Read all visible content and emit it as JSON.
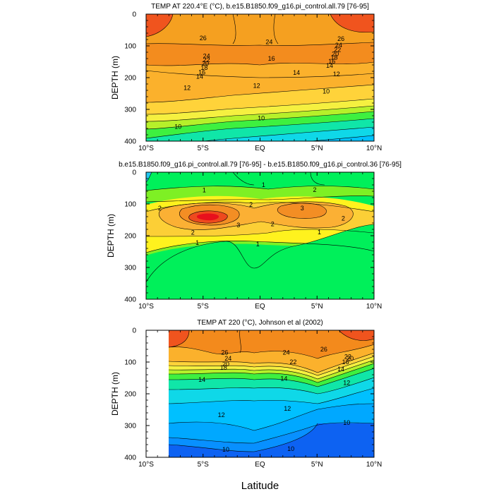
{
  "figure": {
    "xlabel": "Latitude"
  },
  "chart_data": [
    {
      "type": "contour",
      "title": "TEMP AT 220.4°E (°C), b.e15.B1850.f09_g16.pi_control.all.79 [76-95]",
      "ylabel": "DEPTH (m)",
      "xlabel": "",
      "xlim": [
        -10,
        10
      ],
      "ylim": [
        0,
        400
      ],
      "y_inverted": true,
      "x_ticks": [
        "10°S",
        "5°S",
        "EQ",
        "5°N",
        "10°N"
      ],
      "x_tick_values": [
        -10,
        -5,
        0,
        5,
        10
      ],
      "y_ticks": [
        "0",
        "100",
        "200",
        "300",
        "400"
      ],
      "y_tick_values": [
        0,
        100,
        200,
        300,
        400
      ],
      "contour_labels": [
        {
          "text": "26",
          "x": -5,
          "y": 75
        },
        {
          "text": "24",
          "x": 0.8,
          "y": 88
        },
        {
          "text": "22",
          "x": 6.8,
          "y": 112
        },
        {
          "text": "20",
          "x": 6.6,
          "y": 125
        },
        {
          "text": "24",
          "x": -4.7,
          "y": 132
        },
        {
          "text": "22",
          "x": -4.7,
          "y": 144
        },
        {
          "text": "20",
          "x": -4.8,
          "y": 155
        },
        {
          "text": "18",
          "x": -4.9,
          "y": 169
        },
        {
          "text": "16",
          "x": -5.1,
          "y": 183
        },
        {
          "text": "14",
          "x": -5.3,
          "y": 197
        },
        {
          "text": "26",
          "x": 7.1,
          "y": 78
        },
        {
          "text": "24",
          "x": 6.9,
          "y": 98
        },
        {
          "text": "18",
          "x": 6.5,
          "y": 137
        },
        {
          "text": "16",
          "x": 6.3,
          "y": 149
        },
        {
          "text": "14",
          "x": 6.1,
          "y": 162
        },
        {
          "text": "16",
          "x": 1,
          "y": 140
        },
        {
          "text": "14",
          "x": 3.2,
          "y": 184
        },
        {
          "text": "12",
          "x": 6.7,
          "y": 189
        },
        {
          "text": "12",
          "x": -6.4,
          "y": 232
        },
        {
          "text": "12",
          "x": -0.3,
          "y": 226
        },
        {
          "text": "10",
          "x": 5.8,
          "y": 243
        },
        {
          "text": "10",
          "x": 0.1,
          "y": 328
        },
        {
          "text": "10",
          "x": -7.2,
          "y": 354
        }
      ]
    },
    {
      "type": "contour",
      "title": "b.e15.B1850.f09_g16.pi_control.all.79 [76-95] - b.e15.B1850.f09_g16.pi_control.36 [76-95]",
      "ylabel": "DEPTH (m)",
      "xlabel": "",
      "xlim": [
        -10,
        10
      ],
      "ylim": [
        0,
        400
      ],
      "y_inverted": true,
      "x_ticks": [
        "10°S",
        "5°S",
        "EQ",
        "5°N",
        "10°N"
      ],
      "x_tick_values": [
        -10,
        -5,
        0,
        5,
        10
      ],
      "y_ticks": [
        "0",
        "100",
        "200",
        "300",
        "400"
      ],
      "y_tick_values": [
        0,
        100,
        200,
        300,
        400
      ],
      "contour_labels": [
        {
          "text": "1",
          "x": 0.3,
          "y": 40
        },
        {
          "text": "2",
          "x": 4.8,
          "y": 55
        },
        {
          "text": "1",
          "x": -4.9,
          "y": 57
        },
        {
          "text": "2",
          "x": -8.8,
          "y": 113
        },
        {
          "text": "2",
          "x": -0.8,
          "y": 102
        },
        {
          "text": "3",
          "x": 3.7,
          "y": 113
        },
        {
          "text": "2",
          "x": 7.3,
          "y": 145
        },
        {
          "text": "3",
          "x": -1.9,
          "y": 167
        },
        {
          "text": "2",
          "x": -5.9,
          "y": 190
        },
        {
          "text": "2",
          "x": 1.1,
          "y": 163
        },
        {
          "text": "1",
          "x": 5.2,
          "y": 189
        },
        {
          "text": "1",
          "x": -5.5,
          "y": 222
        },
        {
          "text": "1",
          "x": -0.2,
          "y": 227
        }
      ]
    },
    {
      "type": "contour",
      "title": "TEMP AT 220 (°C), Johnson et al (2002)",
      "ylabel": "DEPTH (m)",
      "xlabel": "Latitude",
      "xlim": [
        -10,
        10
      ],
      "ylim": [
        0,
        400
      ],
      "y_inverted": true,
      "x_ticks": [
        "10°S",
        "5°S",
        "EQ",
        "5°N",
        "10°N"
      ],
      "x_tick_values": [
        -10,
        -5,
        0,
        5,
        10
      ],
      "y_ticks": [
        "0",
        "100",
        "200",
        "300",
        "400"
      ],
      "y_tick_values": [
        0,
        100,
        200,
        300,
        400
      ],
      "data_coverage_x": [
        -8,
        10
      ],
      "contour_labels": [
        {
          "text": "26",
          "x": -3.1,
          "y": 70
        },
        {
          "text": "24",
          "x": 2.3,
          "y": 70
        },
        {
          "text": "26",
          "x": 5.6,
          "y": 60
        },
        {
          "text": "24",
          "x": -2.8,
          "y": 89
        },
        {
          "text": "22",
          "x": 2.9,
          "y": 100
        },
        {
          "text": "20",
          "x": -3,
          "y": 107
        },
        {
          "text": "18",
          "x": -3.2,
          "y": 118
        },
        {
          "text": "22",
          "x": 7.7,
          "y": 83
        },
        {
          "text": "20",
          "x": 7.9,
          "y": 89
        },
        {
          "text": "16",
          "x": 7.5,
          "y": 100
        },
        {
          "text": "14",
          "x": 7.1,
          "y": 122
        },
        {
          "text": "14",
          "x": -5.1,
          "y": 155
        },
        {
          "text": "14",
          "x": 2.1,
          "y": 152
        },
        {
          "text": "12",
          "x": 7.6,
          "y": 165
        },
        {
          "text": "12",
          "x": 2.4,
          "y": 247
        },
        {
          "text": "12",
          "x": -3.4,
          "y": 267
        },
        {
          "text": "10",
          "x": 7.6,
          "y": 291
        },
        {
          "text": "10",
          "x": 2.7,
          "y": 373
        },
        {
          "text": "10",
          "x": -3,
          "y": 376
        }
      ]
    }
  ]
}
